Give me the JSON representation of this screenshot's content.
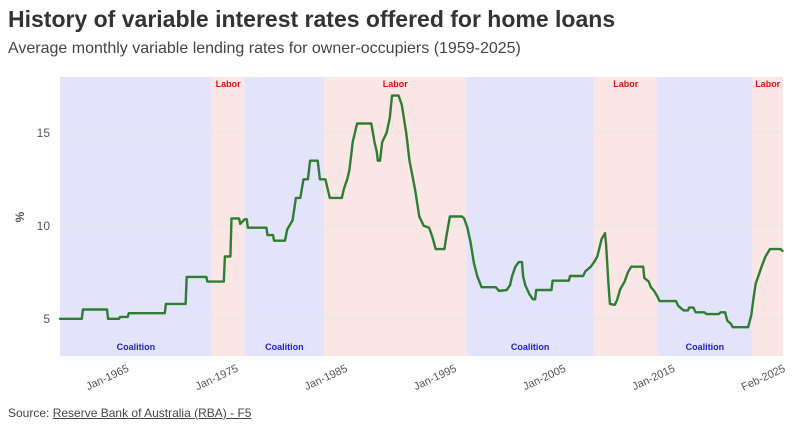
{
  "header": {
    "title": "History of variable interest rates offered for home loans",
    "subtitle": "Average monthly variable lending rates for owner-occupiers (1959-2025)"
  },
  "footer": {
    "source_prefix": "Source: ",
    "source_link": "Reserve Bank of Australia (RBA) - F5"
  },
  "colors": {
    "line": "#2e7d32",
    "coalition_band": "#e3e3fb",
    "labor_band": "#fbe6e6",
    "coalition_text": "#2222cc",
    "labor_text": "#dd1111",
    "grid": "#e6e6e6",
    "tick_text": "#555555"
  },
  "chart_data": {
    "type": "line",
    "title": "History of variable interest rates offered for home loans",
    "subtitle": "Average monthly variable lending rates for owner-occupiers (1959-2025)",
    "xlabel": "",
    "ylabel": "%",
    "xlim": [
      1959.0,
      2025.2
    ],
    "ylim": [
      3,
      18
    ],
    "yticks": [
      5,
      10,
      15
    ],
    "xticks": [
      {
        "label": "Jan-1965",
        "year": 1965.0
      },
      {
        "label": "Jan-1975",
        "year": 1975.0
      },
      {
        "label": "Jan-1985",
        "year": 1985.0
      },
      {
        "label": "Jan-1995",
        "year": 1995.0
      },
      {
        "label": "Jan-2005",
        "year": 2005.0
      },
      {
        "label": "Jan-2015",
        "year": 2015.0
      },
      {
        "label": "Feb-2025",
        "year": 2025.1
      }
    ],
    "grid": true,
    "legend": "none",
    "bands": [
      {
        "party": "Coalition",
        "label": "Coalition",
        "start": 1959.0,
        "end": 1972.9,
        "label_position": "bottom"
      },
      {
        "party": "Labor",
        "label": "Labor",
        "start": 1972.9,
        "end": 1975.9,
        "label_position": "top"
      },
      {
        "party": "Coalition",
        "label": "Coalition",
        "start": 1975.9,
        "end": 1983.2,
        "label_position": "bottom"
      },
      {
        "party": "Labor",
        "label": "Labor",
        "start": 1983.2,
        "end": 1996.2,
        "label_position": "top"
      },
      {
        "party": "Coalition",
        "label": "Coalition",
        "start": 1996.2,
        "end": 2007.9,
        "label_position": "bottom"
      },
      {
        "party": "Labor",
        "label": "Labor",
        "start": 2007.9,
        "end": 2013.7,
        "label_position": "top"
      },
      {
        "party": "Coalition",
        "label": "Coalition",
        "start": 2013.7,
        "end": 2022.4,
        "label_position": "bottom"
      },
      {
        "party": "Labor",
        "label": "Labor",
        "start": 2022.4,
        "end": 2025.2,
        "label_position": "top"
      }
    ],
    "series": [
      {
        "points": [
          [
            1959.0,
            5.0
          ],
          [
            1961.0,
            5.0
          ],
          [
            1961.1,
            5.5
          ],
          [
            1963.3,
            5.5
          ],
          [
            1963.4,
            5.0
          ],
          [
            1964.4,
            5.0
          ],
          [
            1964.5,
            5.1
          ],
          [
            1965.2,
            5.1
          ],
          [
            1965.3,
            5.3
          ],
          [
            1968.6,
            5.3
          ],
          [
            1968.7,
            5.8
          ],
          [
            1970.5,
            5.8
          ],
          [
            1970.6,
            7.25
          ],
          [
            1972.4,
            7.25
          ],
          [
            1972.5,
            7.0
          ],
          [
            1974.0,
            7.0
          ],
          [
            1974.1,
            8.35
          ],
          [
            1974.6,
            8.35
          ],
          [
            1974.7,
            10.4
          ],
          [
            1975.4,
            10.4
          ],
          [
            1975.5,
            10.1
          ],
          [
            1975.9,
            10.35
          ],
          [
            1976.1,
            10.35
          ],
          [
            1976.2,
            9.9
          ],
          [
            1977.9,
            9.9
          ],
          [
            1978.0,
            9.5
          ],
          [
            1978.5,
            9.5
          ],
          [
            1978.6,
            9.2
          ],
          [
            1979.6,
            9.2
          ],
          [
            1979.8,
            9.8
          ],
          [
            1980.0,
            10.0
          ],
          [
            1980.3,
            10.3
          ],
          [
            1980.6,
            11.5
          ],
          [
            1981.0,
            11.5
          ],
          [
            1981.3,
            12.5
          ],
          [
            1981.7,
            12.5
          ],
          [
            1981.9,
            13.5
          ],
          [
            1982.6,
            13.5
          ],
          [
            1982.8,
            12.5
          ],
          [
            1983.3,
            12.5
          ],
          [
            1983.5,
            12.0
          ],
          [
            1983.7,
            11.5
          ],
          [
            1984.8,
            11.5
          ],
          [
            1985.0,
            12.0
          ],
          [
            1985.3,
            12.5
          ],
          [
            1985.5,
            13.0
          ],
          [
            1985.8,
            14.5
          ],
          [
            1986.2,
            15.5
          ],
          [
            1987.5,
            15.5
          ],
          [
            1987.8,
            14.5
          ],
          [
            1988.0,
            14.0
          ],
          [
            1988.1,
            13.5
          ],
          [
            1988.3,
            13.5
          ],
          [
            1988.5,
            14.5
          ],
          [
            1988.9,
            15.0
          ],
          [
            1989.2,
            15.8
          ],
          [
            1989.4,
            17.0
          ],
          [
            1990.0,
            17.0
          ],
          [
            1990.3,
            16.5
          ],
          [
            1990.7,
            15.0
          ],
          [
            1991.0,
            13.5
          ],
          [
            1991.5,
            12.0
          ],
          [
            1991.9,
            10.5
          ],
          [
            1992.3,
            10.0
          ],
          [
            1992.8,
            9.9
          ],
          [
            1993.1,
            9.4
          ],
          [
            1993.4,
            8.75
          ],
          [
            1994.2,
            8.75
          ],
          [
            1994.4,
            9.5
          ],
          [
            1994.7,
            10.5
          ],
          [
            1995.8,
            10.5
          ],
          [
            1996.0,
            10.4
          ],
          [
            1996.3,
            9.9
          ],
          [
            1996.6,
            9.1
          ],
          [
            1996.9,
            8.0
          ],
          [
            1997.2,
            7.3
          ],
          [
            1997.6,
            6.7
          ],
          [
            1998.9,
            6.7
          ],
          [
            1999.2,
            6.5
          ],
          [
            1999.9,
            6.55
          ],
          [
            2000.2,
            6.8
          ],
          [
            2000.4,
            7.3
          ],
          [
            2000.7,
            7.8
          ],
          [
            2001.0,
            8.05
          ],
          [
            2001.3,
            8.05
          ],
          [
            2001.4,
            7.3
          ],
          [
            2001.6,
            6.8
          ],
          [
            2002.0,
            6.3
          ],
          [
            2002.3,
            6.05
          ],
          [
            2002.5,
            6.05
          ],
          [
            2002.6,
            6.55
          ],
          [
            2004.0,
            6.55
          ],
          [
            2004.1,
            7.05
          ],
          [
            2005.6,
            7.05
          ],
          [
            2005.7,
            7.3
          ],
          [
            2006.9,
            7.3
          ],
          [
            2007.1,
            7.55
          ],
          [
            2007.6,
            7.8
          ],
          [
            2007.9,
            8.05
          ],
          [
            2008.2,
            8.35
          ],
          [
            2008.6,
            9.3
          ],
          [
            2008.9,
            9.6
          ],
          [
            2009.0,
            9.0
          ],
          [
            2009.2,
            7.0
          ],
          [
            2009.35,
            5.8
          ],
          [
            2009.8,
            5.75
          ],
          [
            2010.0,
            6.0
          ],
          [
            2010.3,
            6.6
          ],
          [
            2010.7,
            7.0
          ],
          [
            2011.0,
            7.5
          ],
          [
            2011.3,
            7.8
          ],
          [
            2012.4,
            7.8
          ],
          [
            2012.5,
            7.2
          ],
          [
            2012.9,
            7.0
          ],
          [
            2013.1,
            6.7
          ],
          [
            2013.4,
            6.5
          ],
          [
            2013.7,
            6.2
          ],
          [
            2013.9,
            5.95
          ],
          [
            2015.4,
            5.95
          ],
          [
            2015.6,
            5.7
          ],
          [
            2016.1,
            5.45
          ],
          [
            2016.5,
            5.45
          ],
          [
            2016.6,
            5.6
          ],
          [
            2017.0,
            5.6
          ],
          [
            2017.2,
            5.35
          ],
          [
            2018.0,
            5.35
          ],
          [
            2018.2,
            5.25
          ],
          [
            2019.3,
            5.25
          ],
          [
            2019.5,
            5.35
          ],
          [
            2019.9,
            5.35
          ],
          [
            2020.1,
            4.9
          ],
          [
            2020.4,
            4.75
          ],
          [
            2020.6,
            4.55
          ],
          [
            2022.0,
            4.55
          ],
          [
            2022.3,
            5.2
          ],
          [
            2022.5,
            6.1
          ],
          [
            2022.7,
            6.9
          ],
          [
            2023.0,
            7.4
          ],
          [
            2023.3,
            7.9
          ],
          [
            2023.6,
            8.35
          ],
          [
            2024.0,
            8.75
          ],
          [
            2025.0,
            8.75
          ],
          [
            2025.15,
            8.65
          ]
        ]
      }
    ]
  }
}
